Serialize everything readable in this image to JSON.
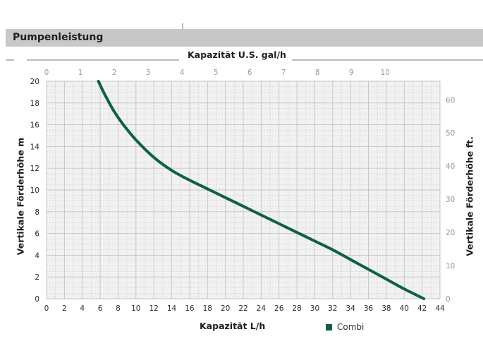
{
  "header": {
    "title": "Pumpenleistung"
  },
  "colors": {
    "curve": "#0f5e4a",
    "header_bar": "#c8c8c8",
    "plot_bg": "#f1f1f1",
    "grid": "#c4c4c4",
    "tick_text_dark": "#2a2a2a",
    "tick_text_light": "#9a9a9a"
  },
  "chart_data": {
    "type": "line",
    "title": "",
    "xlabel": "Kapazität L/h",
    "x2label": "Kapazität U.S. gal/h",
    "ylabel": "Vertikale Förderhöhe m",
    "y2label": "Vertikale Förderhöhe ft.",
    "xlim": [
      0,
      44
    ],
    "ylim": [
      0,
      20
    ],
    "x2lim": [
      0,
      11.62
    ],
    "y2lim": [
      0,
      65.6
    ],
    "x_ticks": [
      0,
      2,
      4,
      6,
      8,
      10,
      12,
      14,
      16,
      18,
      20,
      22,
      24,
      26,
      28,
      30,
      32,
      34,
      36,
      38,
      40,
      42,
      44
    ],
    "y_ticks": [
      0,
      2,
      4,
      6,
      8,
      10,
      12,
      14,
      16,
      18,
      20
    ],
    "x2_ticks": [
      0,
      1,
      2,
      3,
      4,
      5,
      6,
      7,
      8,
      9,
      10
    ],
    "y2_ticks": [
      0,
      10,
      20,
      30,
      40,
      50,
      60
    ],
    "grid": true,
    "legend_position": "bottom-right",
    "series": [
      {
        "name": "Combi",
        "x": [
          5.8,
          6.5,
          7.5,
          8.5,
          10,
          12,
          14,
          16,
          18,
          20,
          22,
          24,
          26,
          28,
          30,
          32,
          34,
          36,
          38,
          40,
          42.2
        ],
        "y": [
          20,
          18.8,
          17.3,
          16.1,
          14.6,
          13.0,
          11.8,
          10.9,
          10.1,
          9.3,
          8.5,
          7.7,
          6.9,
          6.1,
          5.3,
          4.5,
          3.6,
          2.7,
          1.8,
          0.9,
          0
        ]
      }
    ]
  }
}
